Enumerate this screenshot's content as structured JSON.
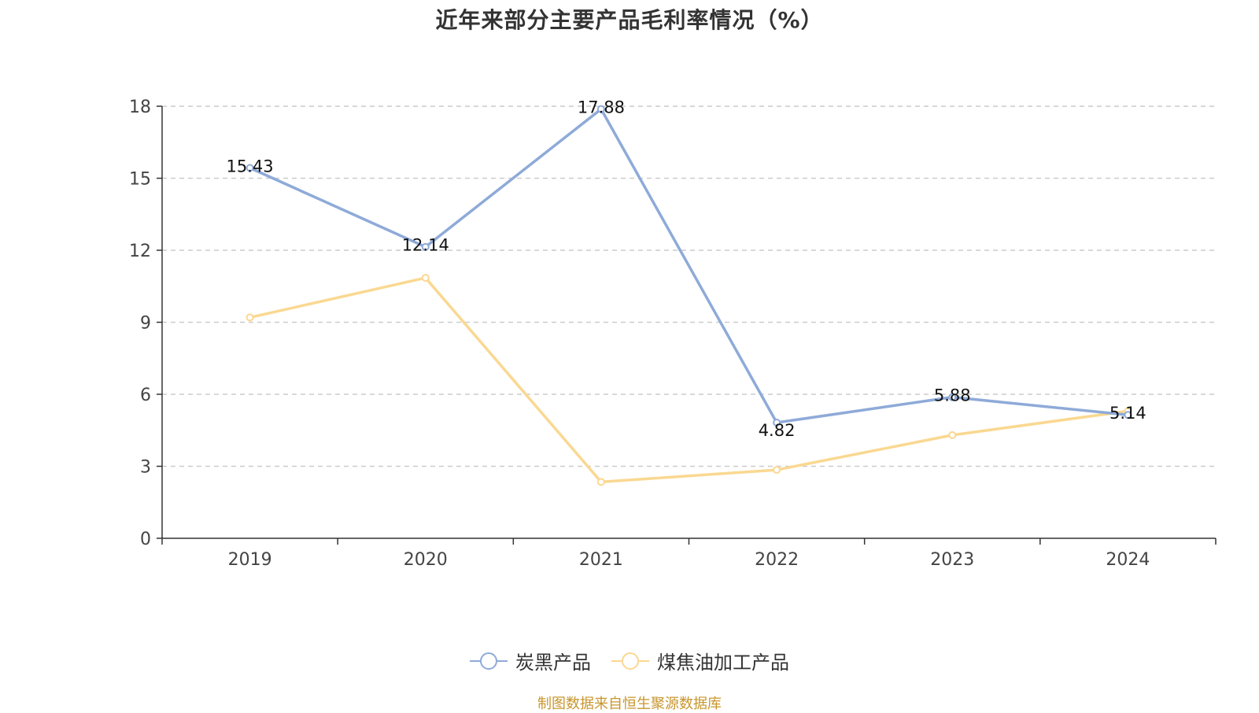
{
  "chart_data": {
    "type": "line",
    "title": "近年来部分主要产品毛利率情况（%）",
    "categories": [
      "2019",
      "2020",
      "2021",
      "2022",
      "2023",
      "2024"
    ],
    "ylim": [
      0,
      18
    ],
    "yticks": [
      0,
      3,
      6,
      9,
      12,
      15,
      18
    ],
    "grid": true,
    "legend_position": "bottom",
    "series": [
      {
        "name": "炭黑产品",
        "color": "#8eaad8",
        "values": [
          15.43,
          12.14,
          17.88,
          4.82,
          5.88,
          5.14
        ],
        "labels": [
          "15.43",
          "12.14",
          "17.88",
          "4.82",
          "5.88",
          "5.14"
        ]
      },
      {
        "name": "煤焦油加工产品",
        "color": "#fad891",
        "values": [
          9.2,
          10.85,
          2.35,
          2.85,
          4.3,
          5.3
        ]
      }
    ]
  },
  "source": "制图数据来自恒生聚源数据库"
}
